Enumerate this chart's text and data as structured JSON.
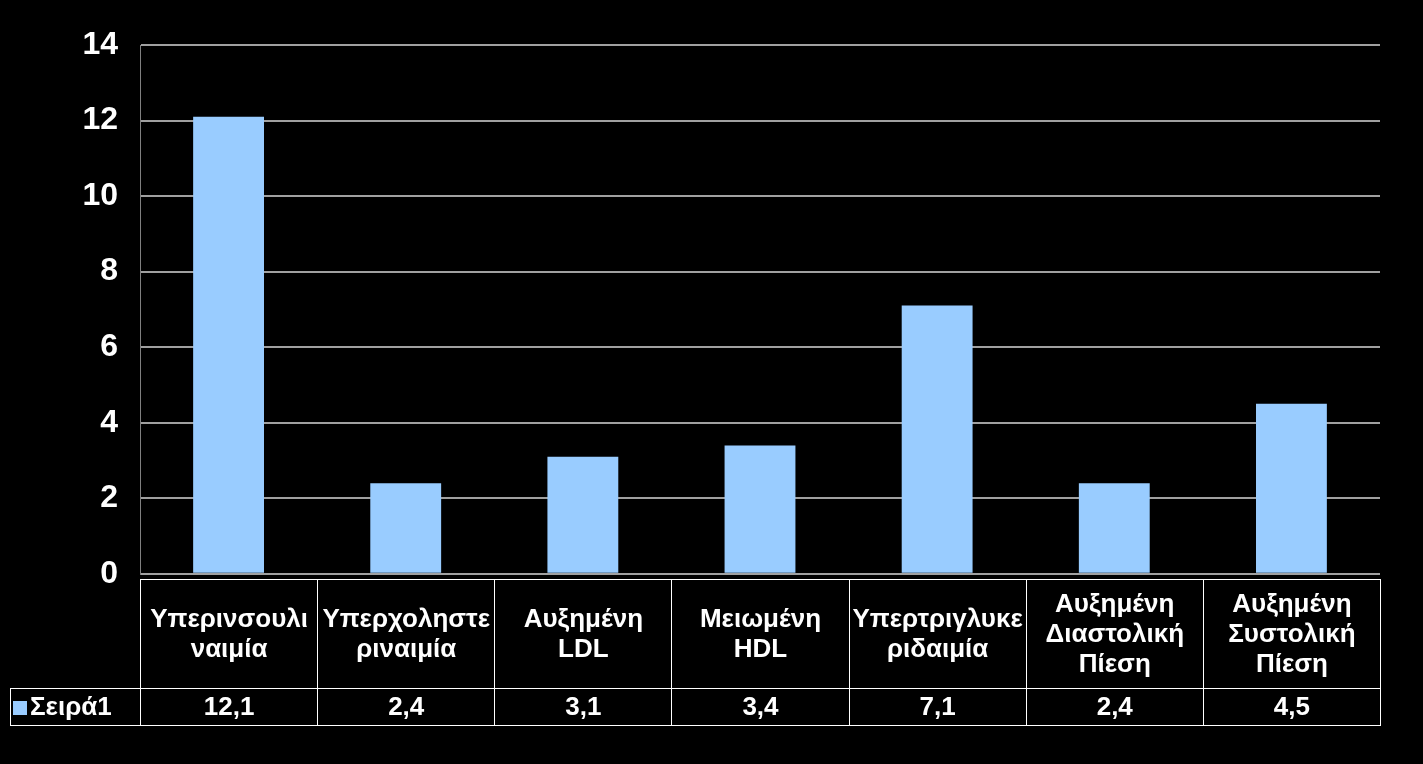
{
  "chart_data": {
    "type": "bar",
    "categories": [
      "Υπερινσουλιναιμία",
      "Υπερχοληστεριναιμία",
      "Αυξημένη LDL",
      "Μειωμένη HDL",
      "Υπερτριγλυκεριδαιμία",
      "Αυξημένη Διαστολική Πίεση",
      "Αυξημένη Συστολική Πίεση"
    ],
    "series": [
      {
        "name": "Σειρά1",
        "color": "#99ccff",
        "values": [
          12.1,
          2.4,
          3.1,
          3.4,
          7.1,
          2.4,
          4.5
        ],
        "value_labels": [
          "12,1",
          "2,4",
          "3,1",
          "3,4",
          "7,1",
          "2,4",
          "4,5"
        ]
      }
    ],
    "ylim": [
      0,
      14
    ],
    "yticks": [
      0,
      2,
      4,
      6,
      8,
      10,
      12,
      14
    ],
    "grid": "y",
    "legend": "bottom"
  }
}
